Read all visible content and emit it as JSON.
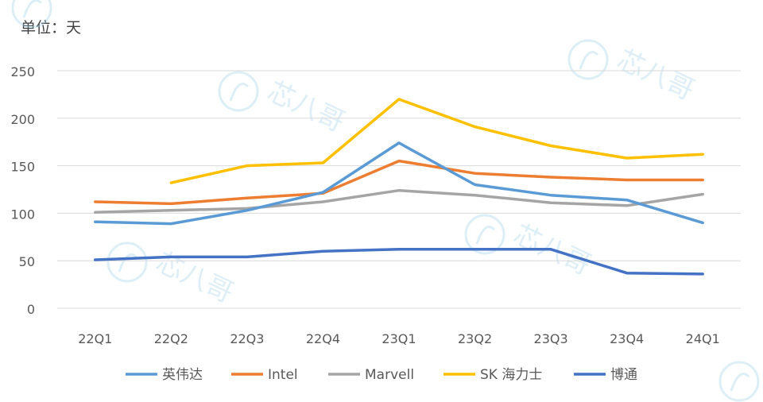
{
  "unit_label": "单位：天",
  "chart_data": {
    "type": "line",
    "title": "",
    "unit": "单位：天",
    "xlabel": "",
    "ylabel": "",
    "ylim": [
      0,
      250
    ],
    "yticks": [
      0,
      50,
      100,
      150,
      200,
      250
    ],
    "grid": true,
    "legend_position": "bottom",
    "categories": [
      "22Q1",
      "22Q2",
      "22Q3",
      "22Q4",
      "23Q1",
      "23Q2",
      "23Q3",
      "23Q4",
      "24Q1"
    ],
    "series": [
      {
        "name": "英伟达",
        "color": "#5b9bd5",
        "values": [
          91,
          89,
          103,
          122,
          174,
          130,
          119,
          114,
          90
        ]
      },
      {
        "name": "Intel",
        "color": "#ed7d31",
        "values": [
          112,
          110,
          116,
          121,
          155,
          142,
          138,
          135,
          135
        ]
      },
      {
        "name": "Marvell",
        "color": "#a5a5a5",
        "values": [
          101,
          103,
          105,
          112,
          124,
          119,
          111,
          108,
          120
        ]
      },
      {
        "name": "SK 海力士",
        "color": "#ffc000",
        "values": [
          null,
          132,
          150,
          153,
          220,
          191,
          171,
          158,
          162
        ]
      },
      {
        "name": "博通",
        "color": "#4472c4",
        "values": [
          51,
          54,
          54,
          60,
          62,
          62,
          62,
          37,
          36
        ]
      }
    ]
  },
  "watermark": {
    "text": "芯八哥",
    "color": "#9fd0e6"
  }
}
